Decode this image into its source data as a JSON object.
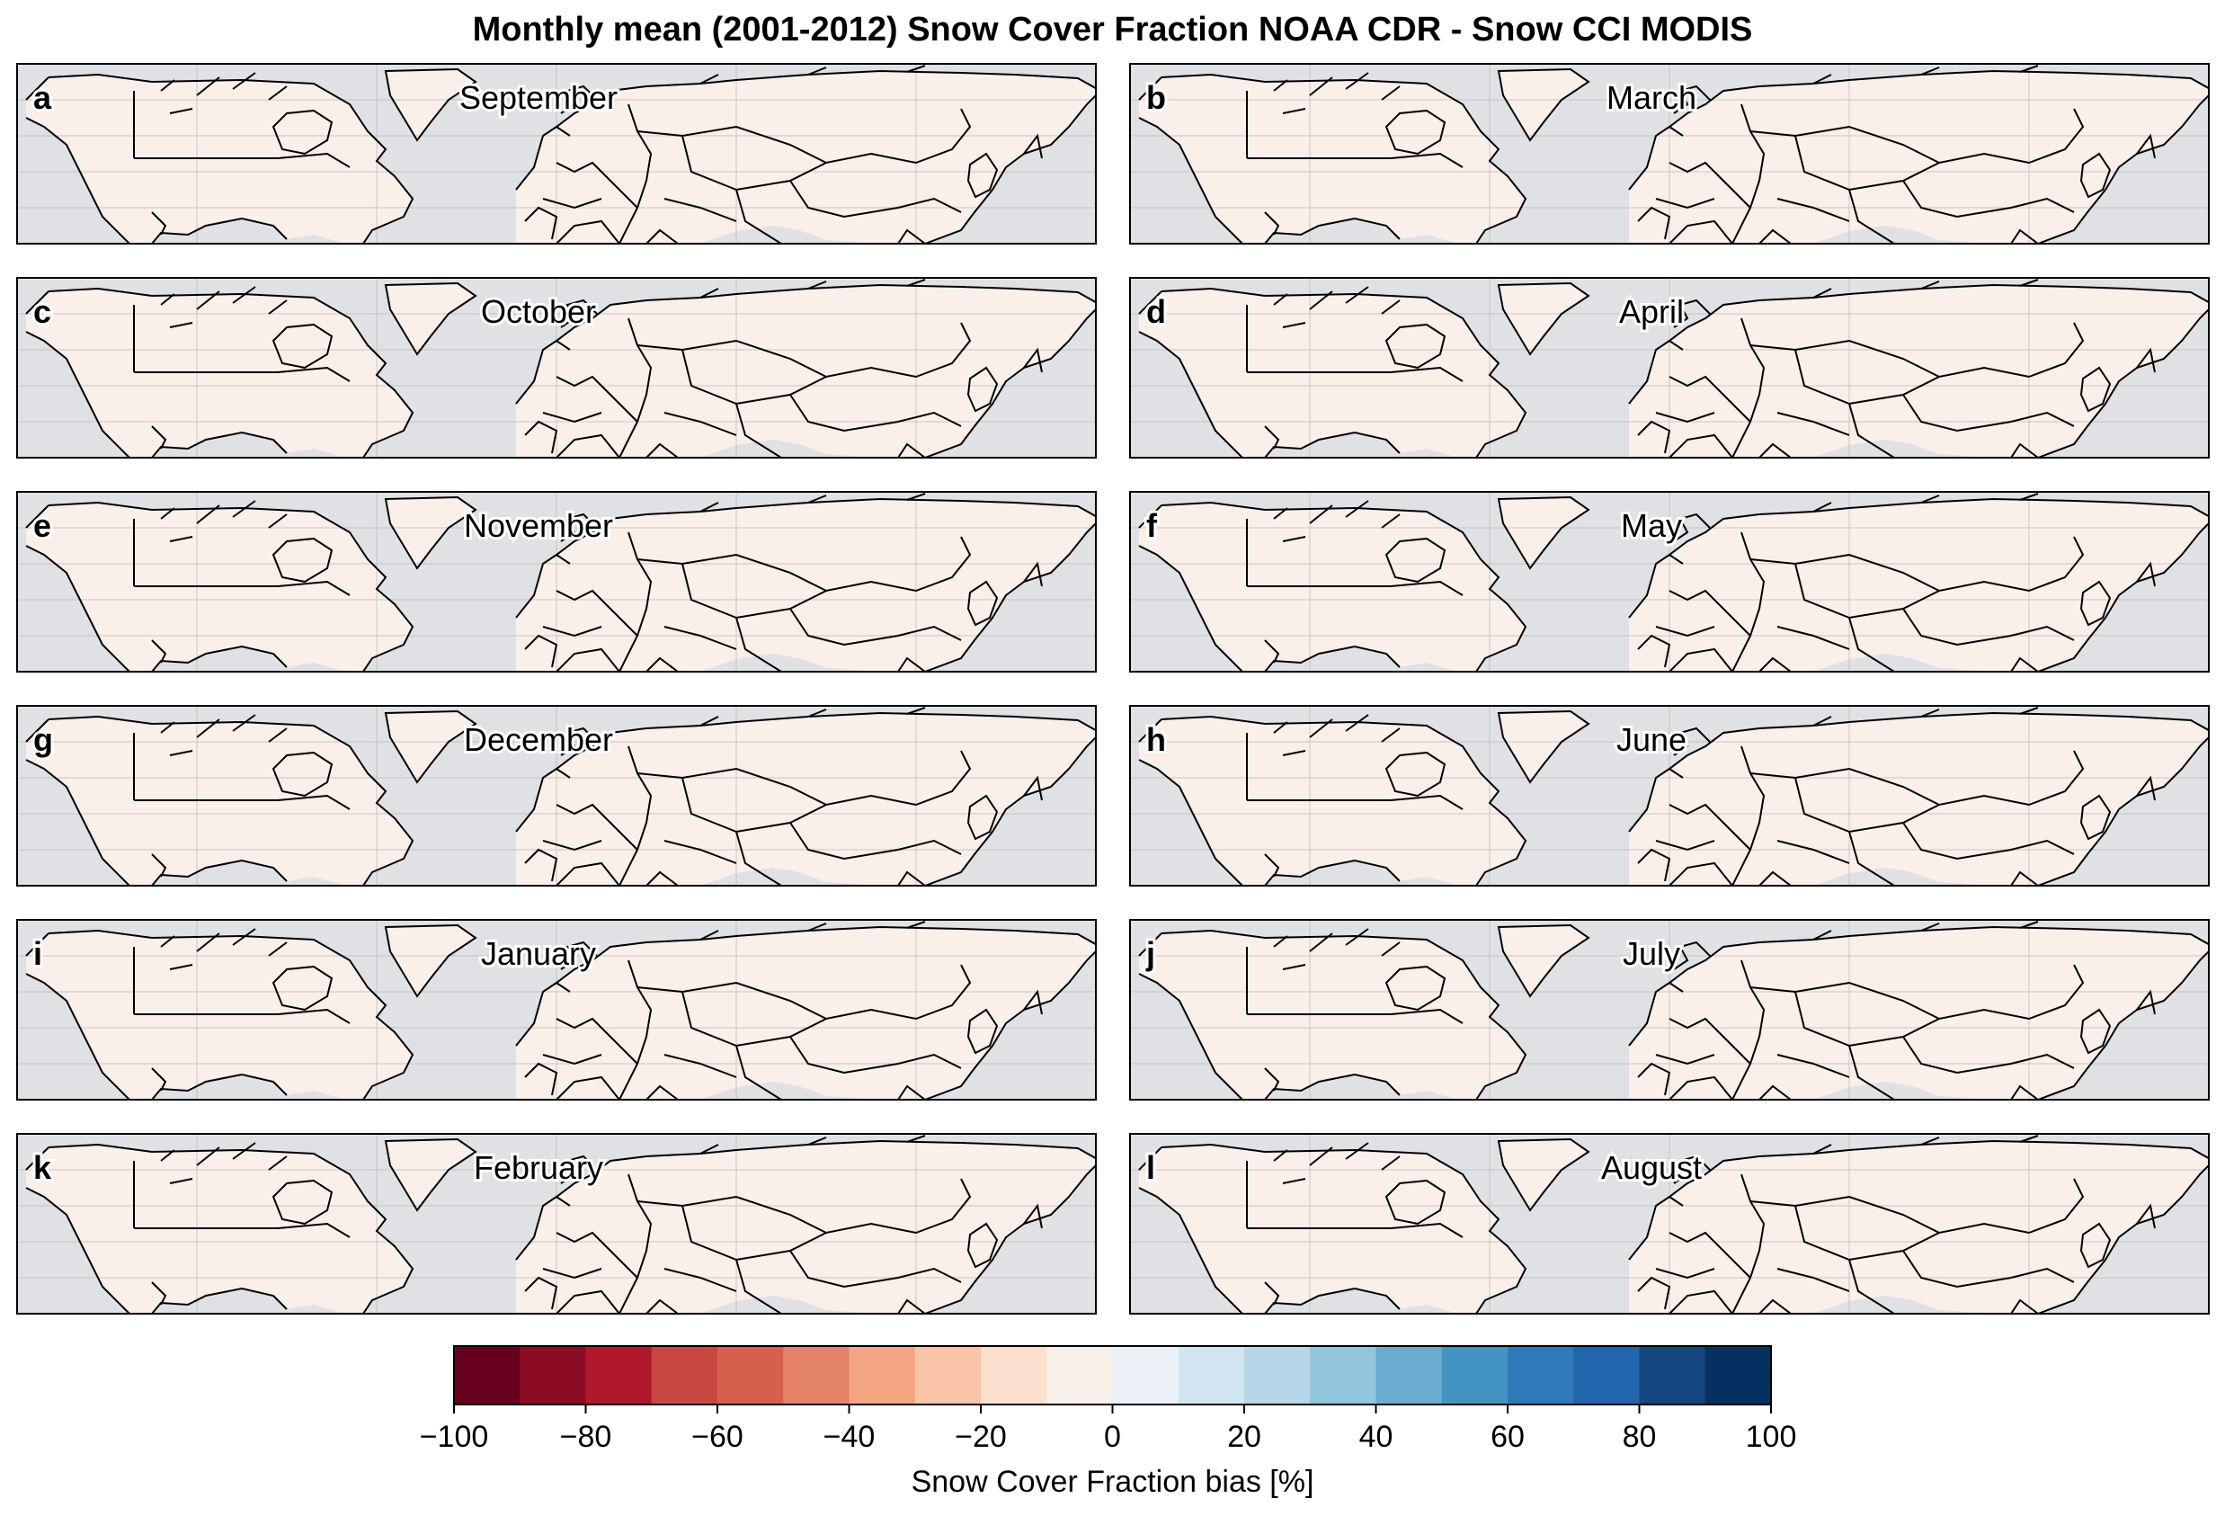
{
  "title": "Monthly mean (2001-2012) Snow Cover Fraction NOAA CDR - Snow CCI MODIS",
  "panels": [
    {
      "letter": "a",
      "month": "September"
    },
    {
      "letter": "b",
      "month": "March"
    },
    {
      "letter": "c",
      "month": "October"
    },
    {
      "letter": "d",
      "month": "April"
    },
    {
      "letter": "e",
      "month": "November"
    },
    {
      "letter": "f",
      "month": "May"
    },
    {
      "letter": "g",
      "month": "December"
    },
    {
      "letter": "h",
      "month": "June"
    },
    {
      "letter": "i",
      "month": "January"
    },
    {
      "letter": "j",
      "month": "July"
    },
    {
      "letter": "k",
      "month": "February"
    },
    {
      "letter": "l",
      "month": "August"
    }
  ],
  "colorbar": {
    "label": "Snow Cover Fraction bias [%]",
    "ticks": [
      "−100",
      "−80",
      "−60",
      "−40",
      "−20",
      "0",
      "20",
      "40",
      "60",
      "80",
      "100"
    ],
    "range": [
      -100,
      100
    ],
    "step": 10,
    "colors": [
      "#67001f",
      "#8d0c25",
      "#b2182b",
      "#c94741",
      "#d6604d",
      "#e58368",
      "#f4a582",
      "#f8c3a6",
      "#fcdfcc",
      "#f9efe9",
      "#eaf0f5",
      "#d1e5f0",
      "#b6d7e8",
      "#92c5de",
      "#6aacd0",
      "#4393c3",
      "#3079b8",
      "#2166ac",
      "#15467f",
      "#053061"
    ]
  },
  "map_colors": {
    "ocean": "#dfe1e5",
    "land_neutral": "#fbefe9",
    "light_blue": "#e6eff5",
    "mid_blue": "#c6dced",
    "strong_blue": "#8fbfdd",
    "white": "#ffffff",
    "red_tint": "#f6d7c9",
    "grid": "#b5b5b5",
    "coast": "#000000"
  }
}
